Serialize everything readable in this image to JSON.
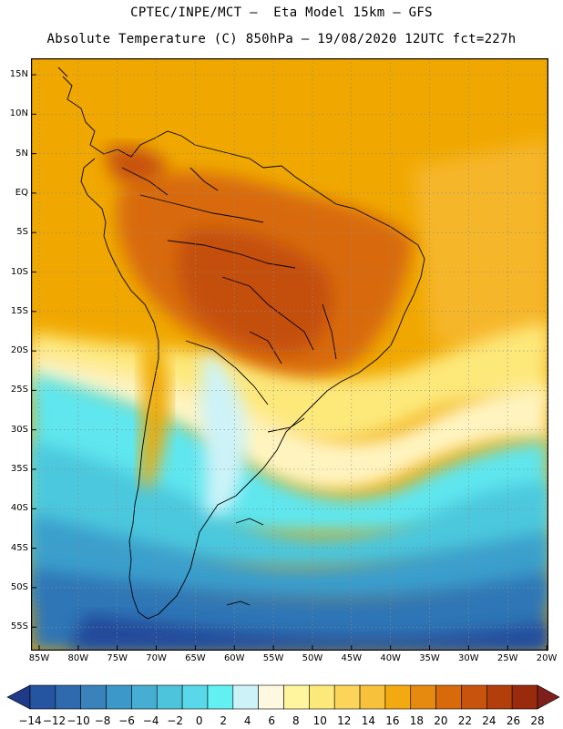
{
  "title": {
    "line1": "CPTEC/INPE/MCT –  Eta Model 15km – GFS",
    "line2": "Absolute Temperature (C) 850hPa – 19/08/2020 12UTC fct=227h"
  },
  "map": {
    "lat_labels": [
      "15N",
      "10N",
      "5N",
      "EQ",
      "5S",
      "10S",
      "15S",
      "20S",
      "25S",
      "30S",
      "35S",
      "40S",
      "45S",
      "50S",
      "55S"
    ],
    "lon_labels": [
      "85W",
      "80W",
      "75W",
      "70W",
      "65W",
      "60W",
      "55W",
      "50W",
      "45W",
      "40W",
      "35W",
      "30W",
      "25W",
      "20W"
    ],
    "background_color": "#f0a800",
    "coast_color": "#000000",
    "grid_color": "#8a8a8a"
  },
  "colorbar": {
    "labels": [
      "-14",
      "-12",
      "-10",
      "-8",
      "-6",
      "-4",
      "-2",
      "0",
      "2",
      "4",
      "6",
      "8",
      "10",
      "12",
      "14",
      "16",
      "18",
      "20",
      "22",
      "24",
      "26",
      "28"
    ],
    "colors": [
      "#1f3a88",
      "#2554a0",
      "#2f6aae",
      "#3a82bc",
      "#3c98c8",
      "#45aed2",
      "#4dc3dc",
      "#58d8e8",
      "#62f0f2",
      "#cdf3f8",
      "#fff8e0",
      "#fff59e",
      "#fde87a",
      "#fcd45a",
      "#f8c13c",
      "#f2aa10",
      "#e58a0e",
      "#d86a0a",
      "#c8530d",
      "#b23e0b",
      "#9a2a0c",
      "#7e1f1b"
    ]
  }
}
